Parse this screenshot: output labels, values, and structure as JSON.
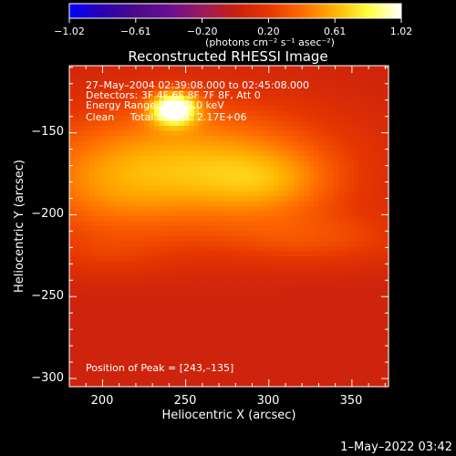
{
  "colorbar": {
    "tick_labels": [
      "−1.02",
      "−0.61",
      "−0.20",
      "0.20",
      "0.61",
      "1.02"
    ],
    "units": "(photons cm⁻² s⁻¹ asec⁻²)",
    "colors": [
      "#0000ff",
      "#2a00b0",
      "#4b0a8a",
      "#6a0d93",
      "#9b1a5e",
      "#c81f10",
      "#e63600",
      "#ff6a00",
      "#ffb300",
      "#ffff40",
      "#ffffff"
    ],
    "range": [
      -1.02,
      1.02
    ]
  },
  "chart_data": {
    "type": "heatmap",
    "title": "Reconstructed RHESSI Image",
    "xlabel": "Heliocentric X (arcsec)",
    "ylabel": "Heliocentric Y (arcsec)",
    "xlim": [
      180,
      372
    ],
    "ylim": [
      -305,
      -109
    ],
    "x_ticks": [
      200,
      250,
      300,
      350
    ],
    "y_ticks": [
      -150,
      -200,
      -250,
      -300
    ],
    "x_tick_labels": [
      "200",
      "250",
      "300",
      "350"
    ],
    "y_tick_labels": [
      "−150",
      "−200",
      "−250",
      "−300"
    ],
    "annotations": {
      "line1": "27–May–2004 02:39:08.000 to 02:45:08.000",
      "line2": "Detectors: 3F 4F 6F 8F 7F 8F, Att 0",
      "line3": "Energy Range: 6 – 12.0 keV",
      "line4": "Clean     Total counts: 2.17E+06",
      "peak": "Position of Peak = [243,–135]"
    },
    "peak_position": [
      243,
      -135
    ],
    "intensity_components": [
      {
        "x": 243,
        "y": -135,
        "sx": 10,
        "sy": 7,
        "amp": 0.95
      },
      {
        "x": 250,
        "y": -170,
        "sx": 65,
        "sy": 28,
        "amp": 0.55
      },
      {
        "x": 300,
        "y": -180,
        "sx": 28,
        "sy": 14,
        "amp": 0.22
      },
      {
        "x": 200,
        "y": -190,
        "sx": 35,
        "sy": 22,
        "amp": 0.15
      },
      {
        "x": 330,
        "y": -215,
        "sx": 45,
        "sy": 12,
        "amp": 0.2
      },
      {
        "x": 200,
        "y": -225,
        "sx": 30,
        "sy": 10,
        "amp": 0.1
      }
    ],
    "base_level": 0.04,
    "grid": false
  },
  "timestamp": "1–May–2022 03:42"
}
